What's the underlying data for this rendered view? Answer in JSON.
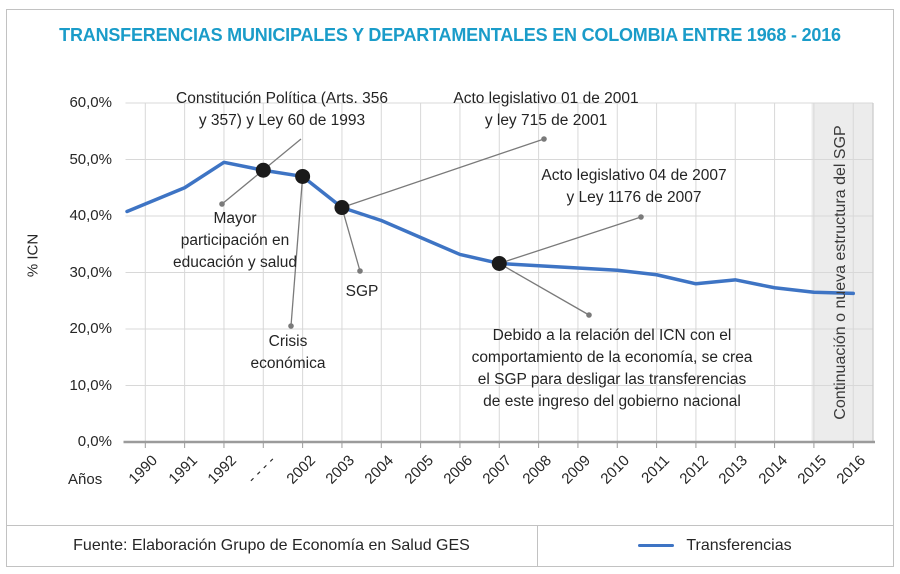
{
  "title": "TRANSFERENCIAS MUNICIPALES Y DEPARTAMENTALES EN COLOMBIA ENTRE 1968 - 2016",
  "colors": {
    "title": "#1a9cc9",
    "series_line": "#3e74c4",
    "marker_dot": "#1a1a1a",
    "leader": "#7a7a7a",
    "gridline": "#d8d8d8",
    "axis": "#9b9b9b",
    "band_fill": "#ececec",
    "band_edge": "#c9c9c9"
  },
  "chart_data": {
    "type": "line",
    "title": "TRANSFERENCIAS MUNICIPALES Y DEPARTAMENTALES EN COLOMBIA ENTRE 1968 - 2016",
    "xlabel": "Años",
    "ylabel": "% ICN",
    "ylim": [
      0,
      60
    ],
    "grid": true,
    "legend_position": "bottom",
    "y_ticks": [
      "0,0%",
      "10,0%",
      "20,0%",
      "30,0%",
      "40,0%",
      "50,0%",
      "60,0%"
    ],
    "categories": [
      "1990",
      "1991",
      "1992",
      "- - - -",
      "2002",
      "2003",
      "2004",
      "2005",
      "2006",
      "2007",
      "2008",
      "2009",
      "2010",
      "2011",
      "2012",
      "2013",
      "2014",
      "2015",
      "2016"
    ],
    "series": [
      {
        "name": "Transferencias",
        "values": [
          40.8,
          45.0,
          49.5,
          48.1,
          47.0,
          41.5,
          39.2,
          36.2,
          33.2,
          31.6,
          31.2,
          30.8,
          30.4,
          29.6,
          28.0,
          28.7,
          27.3,
          26.5,
          26.3
        ]
      }
    ],
    "marker_indices": [
      3,
      4,
      5,
      9
    ],
    "highlight_band": {
      "label": "Continuación o nueva estructura del SGP",
      "covers": "2015-2016"
    }
  },
  "annotations": {
    "constitucion": {
      "text": "Constitución Política (Arts. 356\ny 357) y Ley 60 de 1993"
    },
    "acto2001": {
      "text": "Acto legislativo 01 de 2001\ny ley 715 de 2001"
    },
    "acto2007": {
      "text": "Acto legislativo 04 de 2007\ny Ley 1176 de 2007"
    },
    "mayor": {
      "text": "Mayor\nparticipación en\neducación y salud"
    },
    "crisis": {
      "text": "Crisis\neconómica"
    },
    "sgp": {
      "text": "SGP"
    },
    "debido": {
      "text": "Debido a la relación del ICN con el\ncomportamiento de la economía, se crea\nel SGP para desligar las transferencias\nde este ingreso del gobierno nacional"
    }
  },
  "footer": {
    "source": "Fuente: Elaboración Grupo de Economía en Salud GES",
    "legend_label": "Transferencias"
  }
}
